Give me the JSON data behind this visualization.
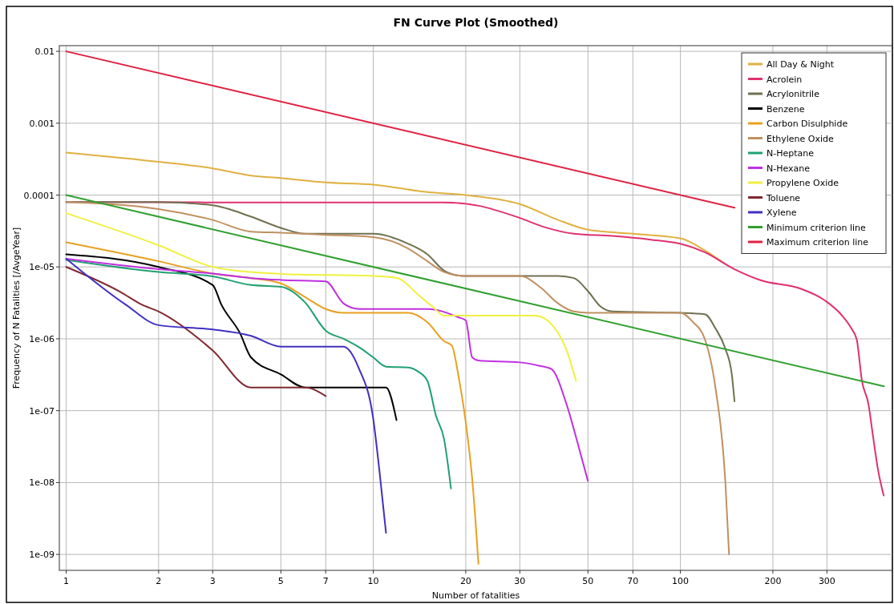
{
  "chart_data": {
    "type": "line",
    "title": "FN Curve Plot (Smoothed)",
    "xlabel": "Number of fatalities",
    "ylabel": "Frequency of N Fatalities [/AvgeYear]",
    "log": "xy",
    "grid": true,
    "legend": "top right",
    "line_style": "solid",
    "marker": "none",
    "xlim": [
      0.95,
      490
    ],
    "ylim": [
      6e-10,
      0.012
    ],
    "xticks": [
      1,
      2,
      3,
      5,
      7,
      10,
      20,
      30,
      50,
      70,
      100,
      200,
      300
    ],
    "yticks": [
      {
        "value": 0.01,
        "label": "0.01"
      },
      {
        "value": 0.001,
        "label": "0.001"
      },
      {
        "value": 0.0001,
        "label": "0.0001"
      },
      {
        "value": 1e-05,
        "label": "1e-05"
      },
      {
        "value": 1e-06,
        "label": "1e-06"
      },
      {
        "value": 1e-07,
        "label": "1e-07"
      },
      {
        "value": 1e-08,
        "label": "1e-08"
      },
      {
        "value": 1e-09,
        "label": "1e-09"
      }
    ],
    "series": [
      {
        "name": "All Day & Night",
        "color": "#e0b040",
        "x": [
          1,
          2,
          3,
          4,
          5,
          7,
          10,
          15,
          20,
          30,
          40,
          50,
          70,
          100,
          120,
          140
        ],
        "values": [
          0.00039,
          0.00029,
          0.000235,
          0.000187,
          0.000173,
          0.00015,
          0.00014,
          0.00011,
          0.0001,
          7.5e-05,
          4.5e-05,
          3.3e-05,
          2.9e-05,
          2.5e-05,
          1.7e-05,
          1.1e-05
        ]
      },
      {
        "name": "Acrolein",
        "color": "#e03070",
        "x": [
          1,
          5,
          10,
          17,
          22,
          30,
          36,
          45,
          60,
          80,
          100,
          120,
          150,
          183,
          246,
          296,
          333,
          360,
          375,
          390,
          410,
          422,
          440,
          459
        ],
        "values": [
          8e-05,
          7.9e-05,
          7.9e-05,
          7.9e-05,
          7.1e-05,
          4.8e-05,
          3.6e-05,
          2.9e-05,
          2.7e-05,
          2.4e-05,
          2.1e-05,
          1.6e-05,
          9.3e-06,
          6.5e-06,
          5e-06,
          3.4e-06,
          2.2e-06,
          1.4e-06,
          9.8e-07,
          2.6e-07,
          1.2e-07,
          5e-08,
          1.5e-08,
          6.6e-09
        ]
      },
      {
        "name": "Acrylonitrile",
        "color": "#707050",
        "x": [
          1,
          2,
          3,
          4,
          5,
          6,
          10,
          13,
          15,
          17,
          19,
          20,
          40,
          45,
          50,
          55,
          60,
          100,
          120,
          130,
          140,
          147,
          150
        ],
        "values": [
          8e-05,
          8e-05,
          7.2e-05,
          5e-05,
          3.5e-05,
          2.9e-05,
          2.9e-05,
          2.1e-05,
          1.5e-05,
          8.9e-06,
          7.6e-06,
          7.5e-06,
          7.5e-06,
          7e-06,
          4.6e-06,
          2.8e-06,
          2.4e-06,
          2.3e-06,
          2.2e-06,
          1.4e-06,
          7.3e-07,
          3.2e-07,
          1.35e-07
        ]
      },
      {
        "name": "Benzene",
        "color": "#000000",
        "x": [
          1,
          2,
          3,
          3.2,
          3.68,
          4,
          5,
          6,
          11,
          11.9
        ],
        "values": [
          1.5e-05,
          1e-05,
          5.6e-06,
          3e-06,
          1.2e-06,
          5.5e-07,
          3.2e-07,
          2.1e-07,
          2.1e-07,
          7.4e-08
        ]
      },
      {
        "name": "Carbon Disulphide",
        "color": "#e8a020",
        "x": [
          1,
          2,
          3,
          4,
          5,
          6,
          7,
          8,
          10,
          13,
          15,
          17,
          18,
          19,
          20,
          21,
          22
        ],
        "values": [
          2.2e-05,
          1.2e-05,
          8.1e-06,
          7e-06,
          5.9e-06,
          3.8e-06,
          2.6e-06,
          2.3e-06,
          2.3e-06,
          2.3e-06,
          1.7e-06,
          9.3e-07,
          8.1e-07,
          2.8e-07,
          6.9e-08,
          1.1e-08,
          7.4e-10
        ]
      },
      {
        "name": "Ethylene Oxide",
        "color": "#c09060",
        "x": [
          1,
          2,
          3,
          4,
          5,
          7,
          10,
          13,
          15,
          17,
          20,
          30,
          35,
          40,
          45,
          50,
          100,
          110,
          120,
          130,
          140,
          144
        ],
        "values": [
          8e-05,
          6.4e-05,
          4.5e-05,
          3.1e-05,
          3e-05,
          2.8e-05,
          2.6e-05,
          1.8e-05,
          1.2e-05,
          8.5e-06,
          7.5e-06,
          7.5e-06,
          5.2e-06,
          3.1e-06,
          2.4e-06,
          2.3e-06,
          2.3e-06,
          1.7e-06,
          1e-06,
          2.1e-07,
          1.05e-08,
          1e-09
        ]
      },
      {
        "name": "N-Heptane",
        "color": "#20a070",
        "x": [
          1,
          2,
          3,
          4,
          5,
          6,
          7,
          8,
          9,
          10,
          11,
          13,
          14,
          15,
          16,
          17,
          17.9
        ],
        "values": [
          1.25e-05,
          8.5e-06,
          7.4e-06,
          5.6e-06,
          5.3e-06,
          3.2e-06,
          1.3e-06,
          1e-06,
          7.6e-07,
          5.5e-07,
          4.1e-07,
          4e-07,
          3.5e-07,
          2.6e-07,
          8.5e-08,
          4e-08,
          8.3e-09
        ]
      },
      {
        "name": "N-Hexane",
        "color": "#c030e0",
        "x": [
          1,
          2,
          3,
          4,
          5,
          7,
          8,
          9,
          15,
          18.9,
          20,
          21,
          22,
          30,
          34.8,
          38,
          42.4,
          46.4,
          50
        ],
        "values": [
          1.3e-05,
          9.3e-06,
          8.1e-06,
          7e-06,
          6.6e-06,
          6.3e-06,
          3.1e-06,
          2.6e-06,
          2.6e-06,
          2e-06,
          1.8e-06,
          5.5e-07,
          5e-07,
          4.7e-07,
          4.2e-07,
          3.8e-07,
          1.3e-07,
          3.4e-08,
          1.05e-08
        ]
      },
      {
        "name": "Propylene Oxide",
        "color": "#f0f040",
        "x": [
          1,
          2,
          3,
          4,
          5,
          10,
          12,
          14,
          15.6,
          17,
          33.7,
          39,
          42.4,
          45.7
        ],
        "values": [
          5.6e-05,
          2e-05,
          1e-05,
          8.5e-06,
          8e-06,
          7.5e-06,
          7e-06,
          4.1e-06,
          2.8e-06,
          2.1e-06,
          2.1e-06,
          1.4e-06,
          7.3e-07,
          2.6e-07
        ]
      },
      {
        "name": "Toluene",
        "color": "#802830",
        "x": [
          1,
          1.5,
          1.76,
          2,
          3,
          4,
          6,
          7
        ],
        "values": [
          1e-05,
          4.5e-06,
          3e-06,
          2.4e-06,
          6.9e-07,
          2.1e-07,
          2.1e-07,
          1.6e-07
        ]
      },
      {
        "name": "Xylene",
        "color": "#4030c0",
        "x": [
          1,
          1.56,
          2,
          3,
          4,
          5,
          8,
          8.97,
          10,
          10.5,
          11
        ],
        "values": [
          1.3e-05,
          3e-06,
          1.55e-06,
          1.35e-06,
          1.1e-06,
          7.8e-07,
          7.8e-07,
          3.9e-07,
          7.6e-08,
          1.3e-08,
          2e-09
        ]
      },
      {
        "name": "Minimum criterion line",
        "color": "#30a030",
        "x": [
          1,
          460
        ],
        "values": [
          0.0001,
          2.18e-07
        ]
      },
      {
        "name": "Maximum criterion line",
        "color": "#e02040",
        "x": [
          1,
          150
        ],
        "values": [
          0.01,
          6.67e-05
        ]
      }
    ]
  }
}
